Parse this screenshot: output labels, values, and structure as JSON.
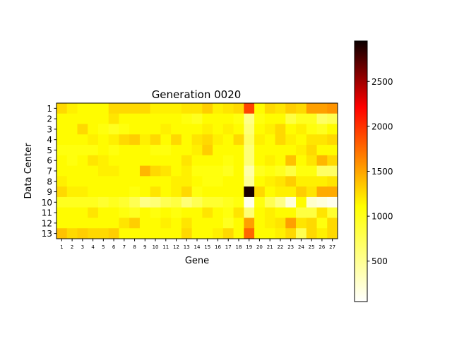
{
  "chart_data": {
    "type": "heatmap",
    "title": "Generation 0020",
    "xlabel": "Gene",
    "ylabel": "Data Center",
    "x_categories": [
      "1",
      "2",
      "3",
      "4",
      "5",
      "6",
      "7",
      "8",
      "9",
      "10",
      "11",
      "12",
      "13",
      "14",
      "15",
      "16",
      "17",
      "18",
      "19",
      "20",
      "21",
      "22",
      "23",
      "24",
      "25",
      "26",
      "27"
    ],
    "y_categories": [
      "1",
      "2",
      "3",
      "4",
      "5",
      "6",
      "7",
      "8",
      "9",
      "10",
      "11",
      "12",
      "13"
    ],
    "values": [
      [
        950,
        850,
        800,
        800,
        800,
        950,
        950,
        950,
        950,
        850,
        850,
        850,
        900,
        900,
        1000,
        850,
        900,
        950,
        1600,
        800,
        950,
        900,
        1000,
        950,
        1200,
        1200,
        1250
      ],
      [
        800,
        800,
        800,
        800,
        800,
        900,
        800,
        800,
        800,
        800,
        800,
        800,
        750,
        700,
        800,
        800,
        800,
        750,
        400,
        750,
        800,
        800,
        600,
        700,
        700,
        500,
        550
      ],
      [
        800,
        800,
        950,
        800,
        750,
        700,
        750,
        800,
        800,
        800,
        850,
        800,
        800,
        800,
        850,
        800,
        850,
        800,
        450,
        800,
        850,
        950,
        800,
        850,
        750,
        700,
        800
      ],
      [
        800,
        800,
        800,
        850,
        800,
        850,
        950,
        1000,
        850,
        950,
        800,
        950,
        800,
        900,
        950,
        850,
        800,
        950,
        500,
        850,
        800,
        950,
        850,
        800,
        900,
        900,
        950
      ],
      [
        750,
        750,
        750,
        750,
        800,
        750,
        800,
        800,
        800,
        750,
        750,
        800,
        800,
        850,
        1000,
        800,
        800,
        800,
        450,
        800,
        800,
        800,
        800,
        850,
        950,
        800,
        800
      ],
      [
        800,
        750,
        800,
        900,
        850,
        800,
        800,
        800,
        800,
        800,
        800,
        800,
        900,
        800,
        800,
        800,
        750,
        800,
        450,
        800,
        850,
        800,
        1050,
        800,
        900,
        1100,
        950
      ],
      [
        800,
        800,
        800,
        800,
        850,
        850,
        800,
        800,
        1100,
        950,
        900,
        800,
        850,
        750,
        750,
        750,
        700,
        800,
        300,
        700,
        750,
        700,
        600,
        750,
        750,
        500,
        500
      ],
      [
        850,
        800,
        800,
        800,
        800,
        800,
        800,
        800,
        800,
        800,
        800,
        850,
        850,
        800,
        750,
        750,
        800,
        800,
        350,
        800,
        850,
        900,
        1000,
        850,
        850,
        850,
        900
      ],
      [
        950,
        850,
        850,
        800,
        800,
        800,
        800,
        750,
        800,
        900,
        800,
        850,
        950,
        750,
        800,
        800,
        800,
        800,
        2950,
        950,
        800,
        850,
        850,
        1000,
        900,
        1150,
        1150
      ],
      [
        700,
        700,
        700,
        700,
        650,
        700,
        650,
        550,
        400,
        450,
        550,
        600,
        450,
        550,
        650,
        650,
        700,
        750,
        100,
        750,
        550,
        400,
        150,
        800,
        200,
        150,
        100
      ],
      [
        800,
        800,
        800,
        900,
        800,
        800,
        750,
        700,
        800,
        750,
        800,
        750,
        800,
        800,
        900,
        800,
        750,
        900,
        450,
        800,
        850,
        800,
        800,
        600,
        600,
        900,
        650
      ],
      [
        800,
        800,
        800,
        800,
        800,
        800,
        900,
        1000,
        800,
        800,
        850,
        800,
        900,
        800,
        800,
        800,
        700,
        800,
        1200,
        800,
        850,
        900,
        1200,
        900,
        950,
        750,
        950
      ],
      [
        1050,
        950,
        1000,
        950,
        950,
        1000,
        800,
        800,
        800,
        800,
        800,
        800,
        950,
        800,
        800,
        850,
        950,
        800,
        1450,
        800,
        800,
        850,
        950,
        550,
        950,
        850,
        950
      ]
    ],
    "colormap": "hot_r",
    "colorbar_range": [
      50,
      2950
    ],
    "colorbar_ticks": [
      "500",
      "1000",
      "1500",
      "2000",
      "2500"
    ],
    "colorbar_tick_values": [
      500,
      1000,
      1500,
      2000,
      2500
    ]
  }
}
